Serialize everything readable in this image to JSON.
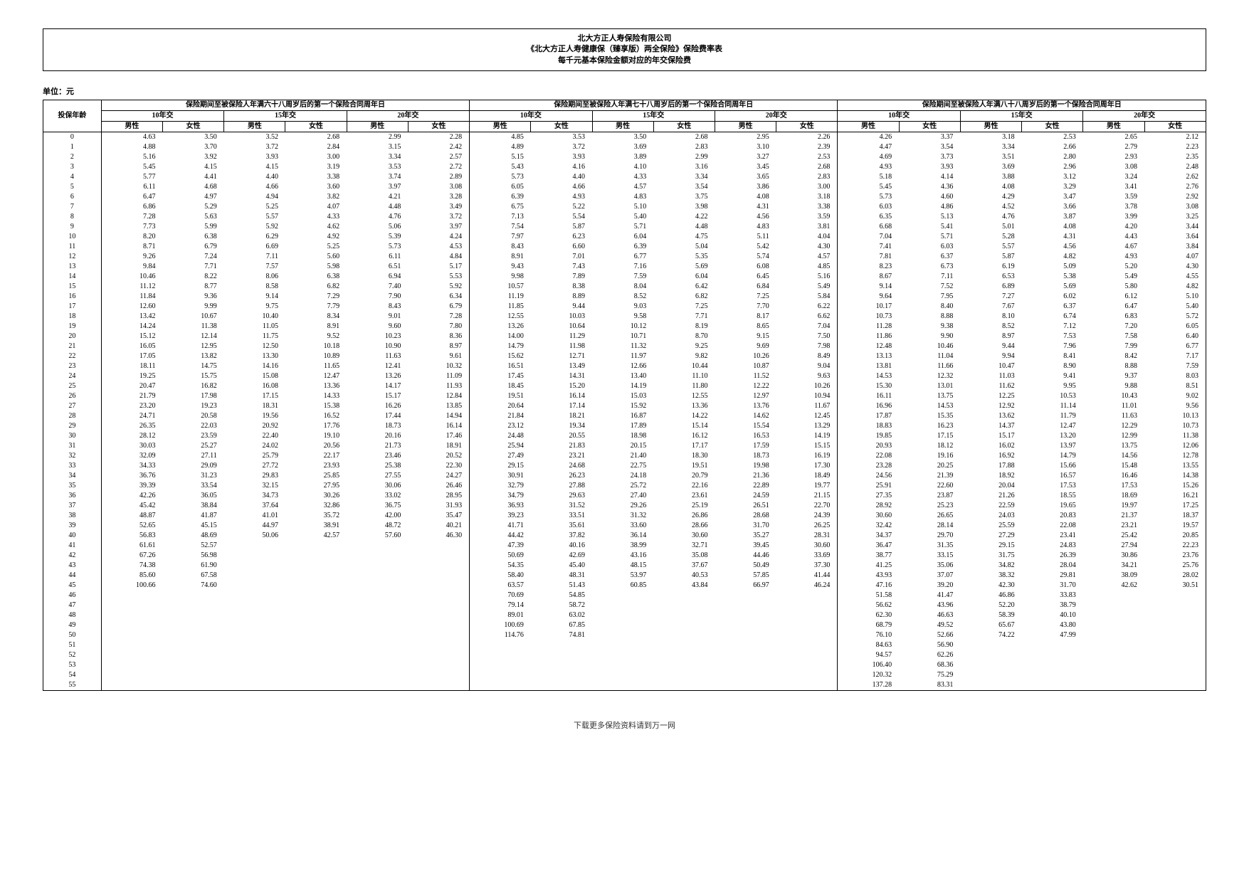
{
  "title": {
    "line1": "北大方正人寿保险有限公司",
    "line2": "《北大方正人寿健康保（臻享版）两全保险》保险费率表",
    "line3": "每千元基本保险金额对应的年交保险费"
  },
  "unit_label": "单位：元",
  "footer": "下载更多保险资料请到万一网",
  "header": {
    "age": "投保年龄",
    "groups": [
      "保险期间至被保险人年满六十八周岁后的第一个保险合同周年日",
      "保险期间至被保险人年满七十八周岁后的第一个保险合同周年日",
      "保险期间至被保险人年满八十八周岁后的第一个保险合同周年日"
    ],
    "terms": [
      "10年交",
      "15年交",
      "20年交"
    ],
    "sex": [
      "男性",
      "女性"
    ]
  },
  "rows": [
    {
      "age": 0,
      "v": [
        "4.63",
        "3.50",
        "3.52",
        "2.68",
        "2.99",
        "2.28",
        "4.85",
        "3.53",
        "3.50",
        "2.68",
        "2.95",
        "2.26",
        "4.26",
        "3.37",
        "3.18",
        "2.53",
        "2.65",
        "2.12"
      ]
    },
    {
      "age": 1,
      "v": [
        "4.88",
        "3.70",
        "3.72",
        "2.84",
        "3.15",
        "2.42",
        "4.89",
        "3.72",
        "3.69",
        "2.83",
        "3.10",
        "2.39",
        "4.47",
        "3.54",
        "3.34",
        "2.66",
        "2.79",
        "2.23"
      ]
    },
    {
      "age": 2,
      "v": [
        "5.16",
        "3.92",
        "3.93",
        "3.00",
        "3.34",
        "2.57",
        "5.15",
        "3.93",
        "3.89",
        "2.99",
        "3.27",
        "2.53",
        "4.69",
        "3.73",
        "3.51",
        "2.80",
        "2.93",
        "2.35"
      ]
    },
    {
      "age": 3,
      "v": [
        "5.45",
        "4.15",
        "4.15",
        "3.19",
        "3.53",
        "2.72",
        "5.43",
        "4.16",
        "4.10",
        "3.16",
        "3.45",
        "2.68",
        "4.93",
        "3.93",
        "3.69",
        "2.96",
        "3.08",
        "2.48"
      ]
    },
    {
      "age": 4,
      "v": [
        "5.77",
        "4.41",
        "4.40",
        "3.38",
        "3.74",
        "2.89",
        "5.73",
        "4.40",
        "4.33",
        "3.34",
        "3.65",
        "2.83",
        "5.18",
        "4.14",
        "3.88",
        "3.12",
        "3.24",
        "2.62"
      ]
    },
    {
      "age": 5,
      "v": [
        "6.11",
        "4.68",
        "4.66",
        "3.60",
        "3.97",
        "3.08",
        "6.05",
        "4.66",
        "4.57",
        "3.54",
        "3.86",
        "3.00",
        "5.45",
        "4.36",
        "4.08",
        "3.29",
        "3.41",
        "2.76"
      ]
    },
    {
      "age": 6,
      "v": [
        "6.47",
        "4.97",
        "4.94",
        "3.82",
        "4.21",
        "3.28",
        "6.39",
        "4.93",
        "4.83",
        "3.75",
        "4.08",
        "3.18",
        "5.73",
        "4.60",
        "4.29",
        "3.47",
        "3.59",
        "2.92"
      ]
    },
    {
      "age": 7,
      "v": [
        "6.86",
        "5.29",
        "5.25",
        "4.07",
        "4.48",
        "3.49",
        "6.75",
        "5.22",
        "5.10",
        "3.98",
        "4.31",
        "3.38",
        "6.03",
        "4.86",
        "4.52",
        "3.66",
        "3.78",
        "3.08"
      ]
    },
    {
      "age": 8,
      "v": [
        "7.28",
        "5.63",
        "5.57",
        "4.33",
        "4.76",
        "3.72",
        "7.13",
        "5.54",
        "5.40",
        "4.22",
        "4.56",
        "3.59",
        "6.35",
        "5.13",
        "4.76",
        "3.87",
        "3.99",
        "3.25"
      ]
    },
    {
      "age": 9,
      "v": [
        "7.73",
        "5.99",
        "5.92",
        "4.62",
        "5.06",
        "3.97",
        "7.54",
        "5.87",
        "5.71",
        "4.48",
        "4.83",
        "3.81",
        "6.68",
        "5.41",
        "5.01",
        "4.08",
        "4.20",
        "3.44"
      ]
    },
    {
      "age": 10,
      "v": [
        "8.20",
        "6.38",
        "6.29",
        "4.92",
        "5.39",
        "4.24",
        "7.97",
        "6.23",
        "6.04",
        "4.75",
        "5.11",
        "4.04",
        "7.04",
        "5.71",
        "5.28",
        "4.31",
        "4.43",
        "3.64"
      ]
    },
    {
      "age": 11,
      "v": [
        "8.71",
        "6.79",
        "6.69",
        "5.25",
        "5.73",
        "4.53",
        "8.43",
        "6.60",
        "6.39",
        "5.04",
        "5.42",
        "4.30",
        "7.41",
        "6.03",
        "5.57",
        "4.56",
        "4.67",
        "3.84"
      ]
    },
    {
      "age": 12,
      "v": [
        "9.26",
        "7.24",
        "7.11",
        "5.60",
        "6.11",
        "4.84",
        "8.91",
        "7.01",
        "6.77",
        "5.35",
        "5.74",
        "4.57",
        "7.81",
        "6.37",
        "5.87",
        "4.82",
        "4.93",
        "4.07"
      ]
    },
    {
      "age": 13,
      "v": [
        "9.84",
        "7.71",
        "7.57",
        "5.98",
        "6.51",
        "5.17",
        "9.43",
        "7.43",
        "7.16",
        "5.69",
        "6.08",
        "4.85",
        "8.23",
        "6.73",
        "6.19",
        "5.09",
        "5.20",
        "4.30"
      ]
    },
    {
      "age": 14,
      "v": [
        "10.46",
        "8.22",
        "8.06",
        "6.38",
        "6.94",
        "5.53",
        "9.98",
        "7.89",
        "7.59",
        "6.04",
        "6.45",
        "5.16",
        "8.67",
        "7.11",
        "6.53",
        "5.38",
        "5.49",
        "4.55"
      ]
    },
    {
      "age": 15,
      "v": [
        "11.12",
        "8.77",
        "8.58",
        "6.82",
        "7.40",
        "5.92",
        "10.57",
        "8.38",
        "8.04",
        "6.42",
        "6.84",
        "5.49",
        "9.14",
        "7.52",
        "6.89",
        "5.69",
        "5.80",
        "4.82"
      ]
    },
    {
      "age": 16,
      "v": [
        "11.84",
        "9.36",
        "9.14",
        "7.29",
        "7.90",
        "6.34",
        "11.19",
        "8.89",
        "8.52",
        "6.82",
        "7.25",
        "5.84",
        "9.64",
        "7.95",
        "7.27",
        "6.02",
        "6.12",
        "5.10"
      ]
    },
    {
      "age": 17,
      "v": [
        "12.60",
        "9.99",
        "9.75",
        "7.79",
        "8.43",
        "6.79",
        "11.85",
        "9.44",
        "9.03",
        "7.25",
        "7.70",
        "6.22",
        "10.17",
        "8.40",
        "7.67",
        "6.37",
        "6.47",
        "5.40"
      ]
    },
    {
      "age": 18,
      "v": [
        "13.42",
        "10.67",
        "10.40",
        "8.34",
        "9.01",
        "7.28",
        "12.55",
        "10.03",
        "9.58",
        "7.71",
        "8.17",
        "6.62",
        "10.73",
        "8.88",
        "8.10",
        "6.74",
        "6.83",
        "5.72"
      ]
    },
    {
      "age": 19,
      "v": [
        "14.24",
        "11.38",
        "11.05",
        "8.91",
        "9.60",
        "7.80",
        "13.26",
        "10.64",
        "10.12",
        "8.19",
        "8.65",
        "7.04",
        "11.28",
        "9.38",
        "8.52",
        "7.12",
        "7.20",
        "6.05"
      ]
    },
    {
      "age": 20,
      "v": [
        "15.12",
        "12.14",
        "11.75",
        "9.52",
        "10.23",
        "8.36",
        "14.00",
        "11.29",
        "10.71",
        "8.70",
        "9.15",
        "7.50",
        "11.86",
        "9.90",
        "8.97",
        "7.53",
        "7.58",
        "6.40"
      ]
    },
    {
      "age": 21,
      "v": [
        "16.05",
        "12.95",
        "12.50",
        "10.18",
        "10.90",
        "8.97",
        "14.79",
        "11.98",
        "11.32",
        "9.25",
        "9.69",
        "7.98",
        "12.48",
        "10.46",
        "9.44",
        "7.96",
        "7.99",
        "6.77"
      ]
    },
    {
      "age": 22,
      "v": [
        "17.05",
        "13.82",
        "13.30",
        "10.89",
        "11.63",
        "9.61",
        "15.62",
        "12.71",
        "11.97",
        "9.82",
        "10.26",
        "8.49",
        "13.13",
        "11.04",
        "9.94",
        "8.41",
        "8.42",
        "7.17"
      ]
    },
    {
      "age": 23,
      "v": [
        "18.11",
        "14.75",
        "14.16",
        "11.65",
        "12.41",
        "10.32",
        "16.51",
        "13.49",
        "12.66",
        "10.44",
        "10.87",
        "9.04",
        "13.81",
        "11.66",
        "10.47",
        "8.90",
        "8.88",
        "7.59"
      ]
    },
    {
      "age": 24,
      "v": [
        "19.25",
        "15.75",
        "15.08",
        "12.47",
        "13.26",
        "11.09",
        "17.45",
        "14.31",
        "13.40",
        "11.10",
        "11.52",
        "9.63",
        "14.53",
        "12.32",
        "11.03",
        "9.41",
        "9.37",
        "8.03"
      ]
    },
    {
      "age": 25,
      "v": [
        "20.47",
        "16.82",
        "16.08",
        "13.36",
        "14.17",
        "11.93",
        "18.45",
        "15.20",
        "14.19",
        "11.80",
        "12.22",
        "10.26",
        "15.30",
        "13.01",
        "11.62",
        "9.95",
        "9.88",
        "8.51"
      ]
    },
    {
      "age": 26,
      "v": [
        "21.79",
        "17.98",
        "17.15",
        "14.33",
        "15.17",
        "12.84",
        "19.51",
        "16.14",
        "15.03",
        "12.55",
        "12.97",
        "10.94",
        "16.11",
        "13.75",
        "12.25",
        "10.53",
        "10.43",
        "9.02"
      ]
    },
    {
      "age": 27,
      "v": [
        "23.20",
        "19.23",
        "18.31",
        "15.38",
        "16.26",
        "13.85",
        "20.64",
        "17.14",
        "15.92",
        "13.36",
        "13.76",
        "11.67",
        "16.96",
        "14.53",
        "12.92",
        "11.14",
        "11.01",
        "9.56"
      ]
    },
    {
      "age": 28,
      "v": [
        "24.71",
        "20.58",
        "19.56",
        "16.52",
        "17.44",
        "14.94",
        "21.84",
        "18.21",
        "16.87",
        "14.22",
        "14.62",
        "12.45",
        "17.87",
        "15.35",
        "13.62",
        "11.79",
        "11.63",
        "10.13"
      ]
    },
    {
      "age": 29,
      "v": [
        "26.35",
        "22.03",
        "20.92",
        "17.76",
        "18.73",
        "16.14",
        "23.12",
        "19.34",
        "17.89",
        "15.14",
        "15.54",
        "13.29",
        "18.83",
        "16.23",
        "14.37",
        "12.47",
        "12.29",
        "10.73"
      ]
    },
    {
      "age": 30,
      "v": [
        "28.12",
        "23.59",
        "22.40",
        "19.10",
        "20.16",
        "17.46",
        "24.48",
        "20.55",
        "18.98",
        "16.12",
        "16.53",
        "14.19",
        "19.85",
        "17.15",
        "15.17",
        "13.20",
        "12.99",
        "11.38"
      ]
    },
    {
      "age": 31,
      "v": [
        "30.03",
        "25.27",
        "24.02",
        "20.56",
        "21.73",
        "18.91",
        "25.94",
        "21.83",
        "20.15",
        "17.17",
        "17.59",
        "15.15",
        "20.93",
        "18.12",
        "16.02",
        "13.97",
        "13.75",
        "12.06"
      ]
    },
    {
      "age": 32,
      "v": [
        "32.09",
        "27.11",
        "25.79",
        "22.17",
        "23.46",
        "20.52",
        "27.49",
        "23.21",
        "21.40",
        "18.30",
        "18.73",
        "16.19",
        "22.08",
        "19.16",
        "16.92",
        "14.79",
        "14.56",
        "12.78"
      ]
    },
    {
      "age": 33,
      "v": [
        "34.33",
        "29.09",
        "27.72",
        "23.93",
        "25.38",
        "22.30",
        "29.15",
        "24.68",
        "22.75",
        "19.51",
        "19.98",
        "17.30",
        "23.28",
        "20.25",
        "17.88",
        "15.66",
        "15.48",
        "13.55"
      ]
    },
    {
      "age": 34,
      "v": [
        "36.76",
        "31.23",
        "29.83",
        "25.85",
        "27.55",
        "24.27",
        "30.91",
        "26.23",
        "24.18",
        "20.79",
        "21.36",
        "18.49",
        "24.56",
        "21.39",
        "18.92",
        "16.57",
        "16.46",
        "14.38"
      ]
    },
    {
      "age": 35,
      "v": [
        "39.39",
        "33.54",
        "32.15",
        "27.95",
        "30.06",
        "26.46",
        "32.79",
        "27.88",
        "25.72",
        "22.16",
        "22.89",
        "19.77",
        "25.91",
        "22.60",
        "20.04",
        "17.53",
        "17.53",
        "15.26"
      ]
    },
    {
      "age": 36,
      "v": [
        "42.26",
        "36.05",
        "34.73",
        "30.26",
        "33.02",
        "28.95",
        "34.79",
        "29.63",
        "27.40",
        "23.61",
        "24.59",
        "21.15",
        "27.35",
        "23.87",
        "21.26",
        "18.55",
        "18.69",
        "16.21"
      ]
    },
    {
      "age": 37,
      "v": [
        "45.42",
        "38.84",
        "37.64",
        "32.86",
        "36.75",
        "31.93",
        "36.93",
        "31.52",
        "29.26",
        "25.19",
        "26.51",
        "22.70",
        "28.92",
        "25.23",
        "22.59",
        "19.65",
        "19.97",
        "17.25"
      ]
    },
    {
      "age": 38,
      "v": [
        "48.87",
        "41.87",
        "41.01",
        "35.72",
        "42.00",
        "35.47",
        "39.23",
        "33.51",
        "31.32",
        "26.86",
        "28.68",
        "24.39",
        "30.60",
        "26.65",
        "24.03",
        "20.83",
        "21.37",
        "18.37"
      ]
    },
    {
      "age": 39,
      "v": [
        "52.65",
        "45.15",
        "44.97",
        "38.91",
        "48.72",
        "40.21",
        "41.71",
        "35.61",
        "33.60",
        "28.66",
        "31.70",
        "26.25",
        "32.42",
        "28.14",
        "25.59",
        "22.08",
        "23.21",
        "19.57"
      ]
    },
    {
      "age": 40,
      "v": [
        "56.83",
        "48.69",
        "50.06",
        "42.57",
        "57.60",
        "46.30",
        "44.42",
        "37.82",
        "36.14",
        "30.60",
        "35.27",
        "28.31",
        "34.37",
        "29.70",
        "27.29",
        "23.41",
        "25.42",
        "20.85"
      ]
    },
    {
      "age": 41,
      "v": [
        "61.61",
        "52.57",
        "",
        "",
        "",
        "",
        "47.39",
        "40.16",
        "38.99",
        "32.71",
        "39.45",
        "30.60",
        "36.47",
        "31.35",
        "29.15",
        "24.83",
        "27.94",
        "22.23"
      ]
    },
    {
      "age": 42,
      "v": [
        "67.26",
        "56.98",
        "",
        "",
        "",
        "",
        "50.69",
        "42.69",
        "43.16",
        "35.08",
        "44.46",
        "33.69",
        "38.77",
        "33.15",
        "31.75",
        "26.39",
        "30.86",
        "23.76"
      ]
    },
    {
      "age": 43,
      "v": [
        "74.38",
        "61.90",
        "",
        "",
        "",
        "",
        "54.35",
        "45.40",
        "48.15",
        "37.67",
        "50.49",
        "37.30",
        "41.25",
        "35.06",
        "34.82",
        "28.04",
        "34.21",
        "25.76"
      ]
    },
    {
      "age": 44,
      "v": [
        "85.60",
        "67.58",
        "",
        "",
        "",
        "",
        "58.40",
        "48.31",
        "53.97",
        "40.53",
        "57.85",
        "41.44",
        "43.93",
        "37.07",
        "38.32",
        "29.81",
        "38.09",
        "28.02"
      ]
    },
    {
      "age": 45,
      "v": [
        "100.66",
        "74.60",
        "",
        "",
        "",
        "",
        "63.57",
        "51.43",
        "60.85",
        "43.84",
        "66.97",
        "46.24",
        "47.16",
        "39.20",
        "42.30",
        "31.70",
        "42.62",
        "30.51"
      ]
    },
    {
      "age": 46,
      "v": [
        "",
        "",
        "",
        "",
        "",
        "",
        "70.69",
        "54.85",
        "",
        "",
        "",
        "",
        "51.58",
        "41.47",
        "46.86",
        "33.83",
        "",
        ""
      ]
    },
    {
      "age": 47,
      "v": [
        "",
        "",
        "",
        "",
        "",
        "",
        "79.14",
        "58.72",
        "",
        "",
        "",
        "",
        "56.62",
        "43.96",
        "52.20",
        "38.79",
        "",
        ""
      ]
    },
    {
      "age": 48,
      "v": [
        "",
        "",
        "",
        "",
        "",
        "",
        "89.01",
        "63.02",
        "",
        "",
        "",
        "",
        "62.30",
        "46.63",
        "58.39",
        "40.10",
        "",
        ""
      ]
    },
    {
      "age": 49,
      "v": [
        "",
        "",
        "",
        "",
        "",
        "",
        "100.69",
        "67.85",
        "",
        "",
        "",
        "",
        "68.79",
        "49.52",
        "65.67",
        "43.80",
        "",
        ""
      ]
    },
    {
      "age": 50,
      "v": [
        "",
        "",
        "",
        "",
        "",
        "",
        "114.76",
        "74.81",
        "",
        "",
        "",
        "",
        "76.10",
        "52.66",
        "74.22",
        "47.99",
        "",
        ""
      ]
    },
    {
      "age": 51,
      "v": [
        "",
        "",
        "",
        "",
        "",
        "",
        "",
        "",
        "",
        "",
        "",
        "",
        "84.63",
        "56.90",
        "",
        "",
        "",
        ""
      ]
    },
    {
      "age": 52,
      "v": [
        "",
        "",
        "",
        "",
        "",
        "",
        "",
        "",
        "",
        "",
        "",
        "",
        "94.57",
        "62.26",
        "",
        "",
        "",
        ""
      ]
    },
    {
      "age": 53,
      "v": [
        "",
        "",
        "",
        "",
        "",
        "",
        "",
        "",
        "",
        "",
        "",
        "",
        "106.40",
        "68.36",
        "",
        "",
        "",
        ""
      ]
    },
    {
      "age": 54,
      "v": [
        "",
        "",
        "",
        "",
        "",
        "",
        "",
        "",
        "",
        "",
        "",
        "",
        "120.32",
        "75.29",
        "",
        "",
        "",
        ""
      ]
    },
    {
      "age": 55,
      "v": [
        "",
        "",
        "",
        "",
        "",
        "",
        "",
        "",
        "",
        "",
        "",
        "",
        "137.28",
        "83.31",
        "",
        "",
        "",
        ""
      ]
    }
  ]
}
